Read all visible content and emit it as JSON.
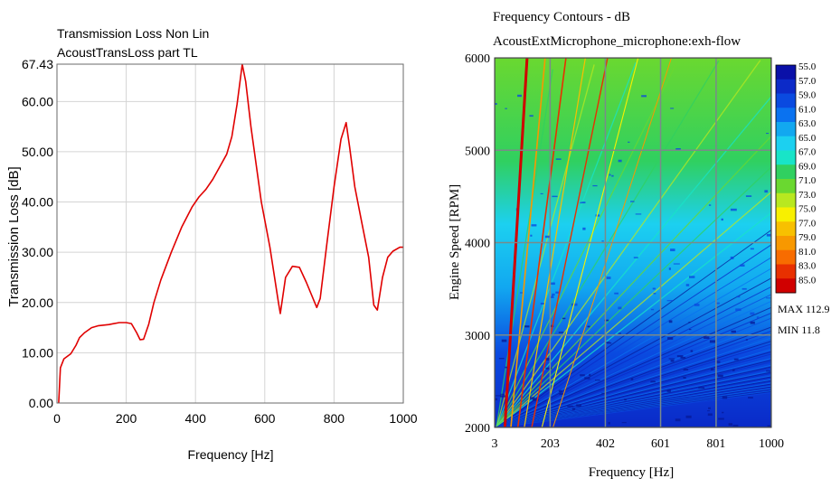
{
  "chart_data": [
    {
      "type": "line",
      "title": "Transmission Loss Non Lin",
      "subtitle": "AcoustTransLoss part TL",
      "xlabel": "Frequency [Hz]",
      "ylabel": "Transmission Loss [dB]",
      "xlim": [
        0,
        1000
      ],
      "ylim": [
        0,
        67.43
      ],
      "x_ticks": [
        "0",
        "200",
        "400",
        "600",
        "800",
        "1000"
      ],
      "y_ticks": [
        "0.00",
        "10.00",
        "20.00",
        "30.00",
        "40.00",
        "50.00",
        "60.00",
        "67.43"
      ],
      "grid": true,
      "series_color": "#e00000",
      "series": [
        {
          "x": [
            5,
            10,
            20,
            40,
            55,
            65,
            80,
            100,
            120,
            150,
            180,
            200,
            215,
            230,
            240,
            250,
            265,
            280,
            300,
            330,
            360,
            390,
            410,
            430,
            450,
            470,
            490,
            505,
            520,
            535,
            545,
            560,
            590,
            615,
            640,
            645,
            660,
            680,
            700,
            720,
            750,
            760,
            780,
            800,
            820,
            835,
            845,
            860,
            880,
            900,
            915,
            925,
            940,
            955,
            970,
            990,
            1000
          ],
          "y": [
            0,
            7,
            8.8,
            9.8,
            11.5,
            13,
            14,
            15,
            15.4,
            15.6,
            16,
            16,
            15.8,
            14,
            12.6,
            12.7,
            15.7,
            20,
            24.5,
            30,
            35,
            39,
            41,
            42.5,
            44.5,
            47,
            49.5,
            53,
            59.5,
            67.4,
            64,
            55,
            40,
            31,
            19.8,
            17.8,
            25,
            27.2,
            27,
            24,
            19,
            20.8,
            32,
            43,
            52.5,
            55.8,
            51,
            43,
            36,
            29,
            19.5,
            18.5,
            25,
            29,
            30.2,
            31,
            31
          ]
        }
      ]
    },
    {
      "type": "heatmap",
      "title": "Frequency Contours - dB",
      "subtitle": "AcoustExtMicrophone_microphone:exh-flow",
      "xlabel": "Frequency [Hz]",
      "ylabel": "Engine Speed [RPM]",
      "xlim": [
        3,
        1000
      ],
      "ylim": [
        2000,
        6000
      ],
      "x_ticks": [
        "3",
        "203",
        "402",
        "601",
        "801",
        "1000"
      ],
      "y_ticks": [
        "2000",
        "3000",
        "4000",
        "5000",
        "6000"
      ],
      "grid": true,
      "legend": {
        "levels": [
          "55.0",
          "57.0",
          "59.0",
          "61.0",
          "63.0",
          "65.0",
          "67.0",
          "69.0",
          "71.0",
          "73.0",
          "75.0",
          "77.0",
          "79.0",
          "81.0",
          "83.0",
          "85.0"
        ],
        "colors": [
          "#0a10a8",
          "#0c2ac8",
          "#0a4ae0",
          "#0a72f0",
          "#12a8f0",
          "#1cd0f0",
          "#18e4c8",
          "#30d060",
          "#6ad830",
          "#b8e820",
          "#f8f000",
          "#f8c000",
          "#f89800",
          "#f86c00",
          "#e83000",
          "#d00000"
        ],
        "max_label": "MAX 112.9",
        "min_label": "MIN  11.8"
      }
    }
  ]
}
